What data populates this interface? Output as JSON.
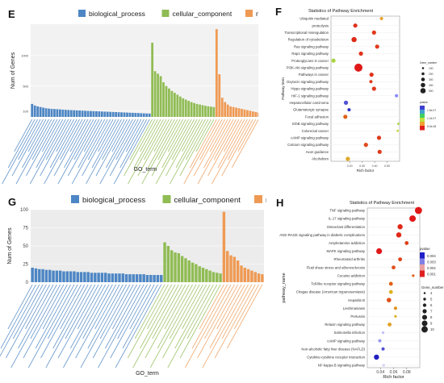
{
  "panel_labels": {
    "E": "E",
    "F": "F",
    "G": "G",
    "H": "H"
  },
  "colors": {
    "bp": "#4d86c4",
    "cc": "#90bc54",
    "mf": "#ef9a54"
  },
  "chart_data": [
    {
      "id": "E",
      "type": "bar",
      "legend": [
        "biological_process",
        "cellular_component",
        "molecular_function"
      ],
      "ylabel": "Num of Genes",
      "xlabel": "GO_term",
      "ylim": [
        0,
        1500
      ],
      "ticks": [
        "1000",
        "500",
        "100"
      ],
      "series": [
        {
          "name": "biological_process",
          "values": [
            210,
            185,
            170,
            160,
            150,
            140,
            135,
            130,
            128,
            125,
            122,
            118,
            115,
            112,
            110,
            108,
            106,
            104,
            102,
            100,
            98,
            96,
            94,
            92,
            90,
            88,
            86,
            84,
            82,
            80,
            78,
            76,
            74,
            72,
            70,
            68,
            66,
            64,
            62,
            60,
            58,
            56,
            54
          ]
        },
        {
          "name": "cellular_component",
          "values": [
            1200,
            740,
            700,
            660,
            560,
            500,
            460,
            420,
            390,
            360,
            330,
            300,
            280,
            260,
            240,
            225,
            210,
            200,
            190,
            180,
            172,
            166,
            160
          ]
        },
        {
          "name": "molecular_function",
          "values": [
            1420,
            690,
            310,
            240,
            200,
            170,
            160,
            150,
            140,
            130,
            120,
            110,
            100,
            90,
            80,
            70
          ]
        }
      ]
    },
    {
      "id": "F",
      "type": "scatter",
      "title": "Statistics of Pathway Enrichment",
      "xlabel": "Rich factor",
      "ylabel": "Pathway term",
      "xlim": [
        0.05,
        0.6
      ],
      "xticks": [
        "0.20",
        "0.30",
        "0.40",
        "0.50"
      ],
      "categories": [
        "Ubiquitin mediated",
        "proteolysis",
        "Transcriptional misregulation",
        "Regulation of cytoskeleton",
        "Ras signaling pathway",
        "Rap1 signaling pathway",
        "Proteoglycans in cancer",
        "PI3K-Akt signaling pathway",
        "Pathways in cancer",
        "Oxytocin signaling pathway",
        "Hippo signaling pathway",
        "HIF-1 signaling pathway",
        "Hepatocellular carcinoma",
        "Glutamatergic synapse",
        "Focal adhesion",
        "ErbB signaling pathway",
        "Colorectal cancer",
        "cAMP signaling pathway",
        "Calcium signaling pathway",
        "Axon guidance",
        "Alcoholism"
      ],
      "x": [
        0.455,
        0.245,
        0.395,
        0.235,
        0.42,
        0.29,
        0.07,
        0.27,
        0.375,
        0.37,
        0.395,
        0.575,
        0.17,
        0.195,
        0.165,
        0.59,
        0.585,
        0.435,
        0.33,
        0.44,
        0.185
      ],
      "p_colors": [
        "#e8a12a",
        "#e0321c",
        "#e03a1c",
        "#de2a18",
        "#e03a1c",
        "#e0321c",
        "#a8d43c",
        "#e01818",
        "#e0321c",
        "#e03a1c",
        "#e03a1c",
        "#8888ff",
        "#5050d8",
        "#3030c8",
        "#e06018",
        "#a8d43c",
        "#c8d83c",
        "#e03a1c",
        "#e04a1c",
        "#e03a1c",
        "#e0a82a"
      ],
      "sizes": [
        2,
        3,
        3,
        4,
        3,
        3,
        3,
        7,
        3,
        2,
        3,
        2,
        3,
        2,
        3,
        1,
        1,
        3,
        3,
        3,
        3
      ],
      "legend_size_title": "Gene_number",
      "legend_size_labels": [
        "100",
        "200",
        "300",
        "400",
        "500"
      ],
      "legend_color_title": "pvalue",
      "legend_color_labels": [
        "1.5e-07",
        "1.0e-07",
        "5.0e-08"
      ]
    },
    {
      "id": "G",
      "type": "bar",
      "legend": [
        "biological_process",
        "cellular_component",
        "molecular_function"
      ],
      "ylabel": "Num of Genes",
      "xlabel": "GO_term",
      "ylim": [
        0,
        100
      ],
      "ticks": [
        "0",
        "25",
        "50",
        "75",
        "100"
      ],
      "series": [
        {
          "name": "biological_process",
          "values": [
            20,
            19,
            18,
            18,
            17,
            17,
            16,
            16,
            16,
            15,
            15,
            15,
            15,
            14,
            14,
            14,
            14,
            13,
            13,
            13,
            13,
            13,
            12,
            12,
            12,
            12,
            12,
            11,
            11,
            11,
            11,
            11,
            11,
            10,
            10,
            10,
            10,
            10
          ]
        },
        {
          "name": "cellular_component",
          "values": [
            55,
            50,
            44,
            41,
            40,
            36,
            33,
            30,
            27,
            25,
            22,
            20,
            18,
            16,
            14,
            13,
            12
          ]
        },
        {
          "name": "molecular_function",
          "values": [
            97,
            43,
            37,
            35,
            30,
            23,
            20,
            18,
            16,
            14,
            12,
            11
          ]
        }
      ]
    },
    {
      "id": "H",
      "type": "scatter",
      "title": "Statistics of Pathway Enrichment",
      "xlabel": "Rich factor",
      "ylabel": "pathway_name",
      "xlim": [
        0.02,
        0.1
      ],
      "xticks": [
        "0.04",
        "0.06",
        "0.08"
      ],
      "categories": [
        "TNF signaling pathway",
        "IL-17 signaling pathway",
        "Osteoclast differentiation",
        "AGE-RAGE signaling pathway in diabetic complications",
        "Amphetamine addiction",
        "MAPK signaling pathway",
        "Rheumatoid arthritis",
        "Fluid shear stress and atherosclerosis",
        "Cocaine addiction",
        "Toll-like receptor signaling pathway",
        "Chagas disease (American trypanosomiasis)",
        "Hepatitis B",
        "Leishmaniasis",
        "Pertussis",
        "Relaxin signaling pathway",
        "Salmonella infection",
        "cAMP signaling pathway",
        "Non-alcoholic fatty liver disease (NAFLD)",
        "Cytokine-cytokine receptor interaction",
        "NF-kappa B signaling pathway"
      ],
      "x": [
        0.098,
        0.089,
        0.07,
        0.068,
        0.08,
        0.038,
        0.07,
        0.06,
        0.09,
        0.056,
        0.056,
        0.053,
        0.063,
        0.063,
        0.054,
        0.044,
        0.039,
        0.044,
        0.034,
        0.045
      ],
      "p_colors": [
        "#e01818",
        "#e01818",
        "#e02818",
        "#e02818",
        "#e04018",
        "#e01818",
        "#e04018",
        "#e05018",
        "#e06018",
        "#e06018",
        "#e0b020",
        "#e05018",
        "#e09018",
        "#e0b020",
        "#e0a020",
        "#c0c0f8",
        "#9898f0",
        "#5050d8",
        "#2020c0",
        "#d0d0f8"
      ],
      "sizes": [
        9,
        8,
        6,
        6,
        4,
        7,
        4,
        4,
        2,
        4,
        4,
        5,
        3,
        2,
        4,
        2,
        3,
        3,
        6,
        2
      ],
      "legend_color_title": "pvalue",
      "legend_color_labels": [
        "0.004",
        "0.003",
        "0.002",
        "0.001"
      ],
      "legend_size_title": "Gene_number",
      "legend_size_labels": [
        "4",
        "5",
        "6",
        "7",
        "8",
        "9",
        "10"
      ]
    }
  ]
}
